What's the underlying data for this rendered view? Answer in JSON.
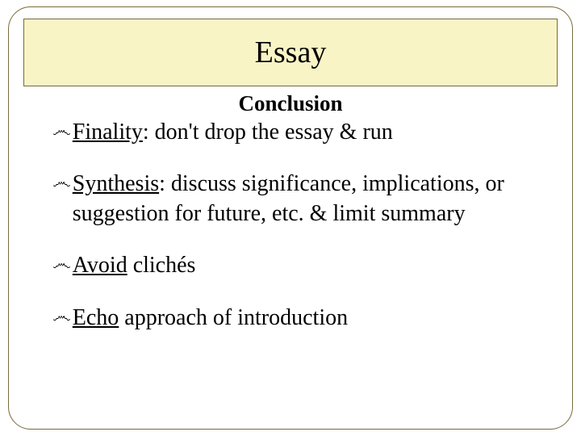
{
  "title": "Essay",
  "subtitle": "Conclusion",
  "bullet_glyph": "෴",
  "bullets": [
    {
      "lead": "Finality",
      "rest": ":  don't drop the essay & run"
    },
    {
      "lead": "Synthesis",
      "rest": ":  discuss significance, implications, or suggestion for future, etc. & limit summary"
    },
    {
      "lead": "Avoid",
      "rest": " clichés"
    },
    {
      "lead": "Echo",
      "rest": " approach of introduction"
    }
  ],
  "colors": {
    "title_bg": "#f8f4c6",
    "border": "#7a6a3a",
    "text": "#000000",
    "background": "#ffffff"
  },
  "fonts": {
    "title_size": 38,
    "subtitle_size": 27,
    "body_size": 28
  }
}
